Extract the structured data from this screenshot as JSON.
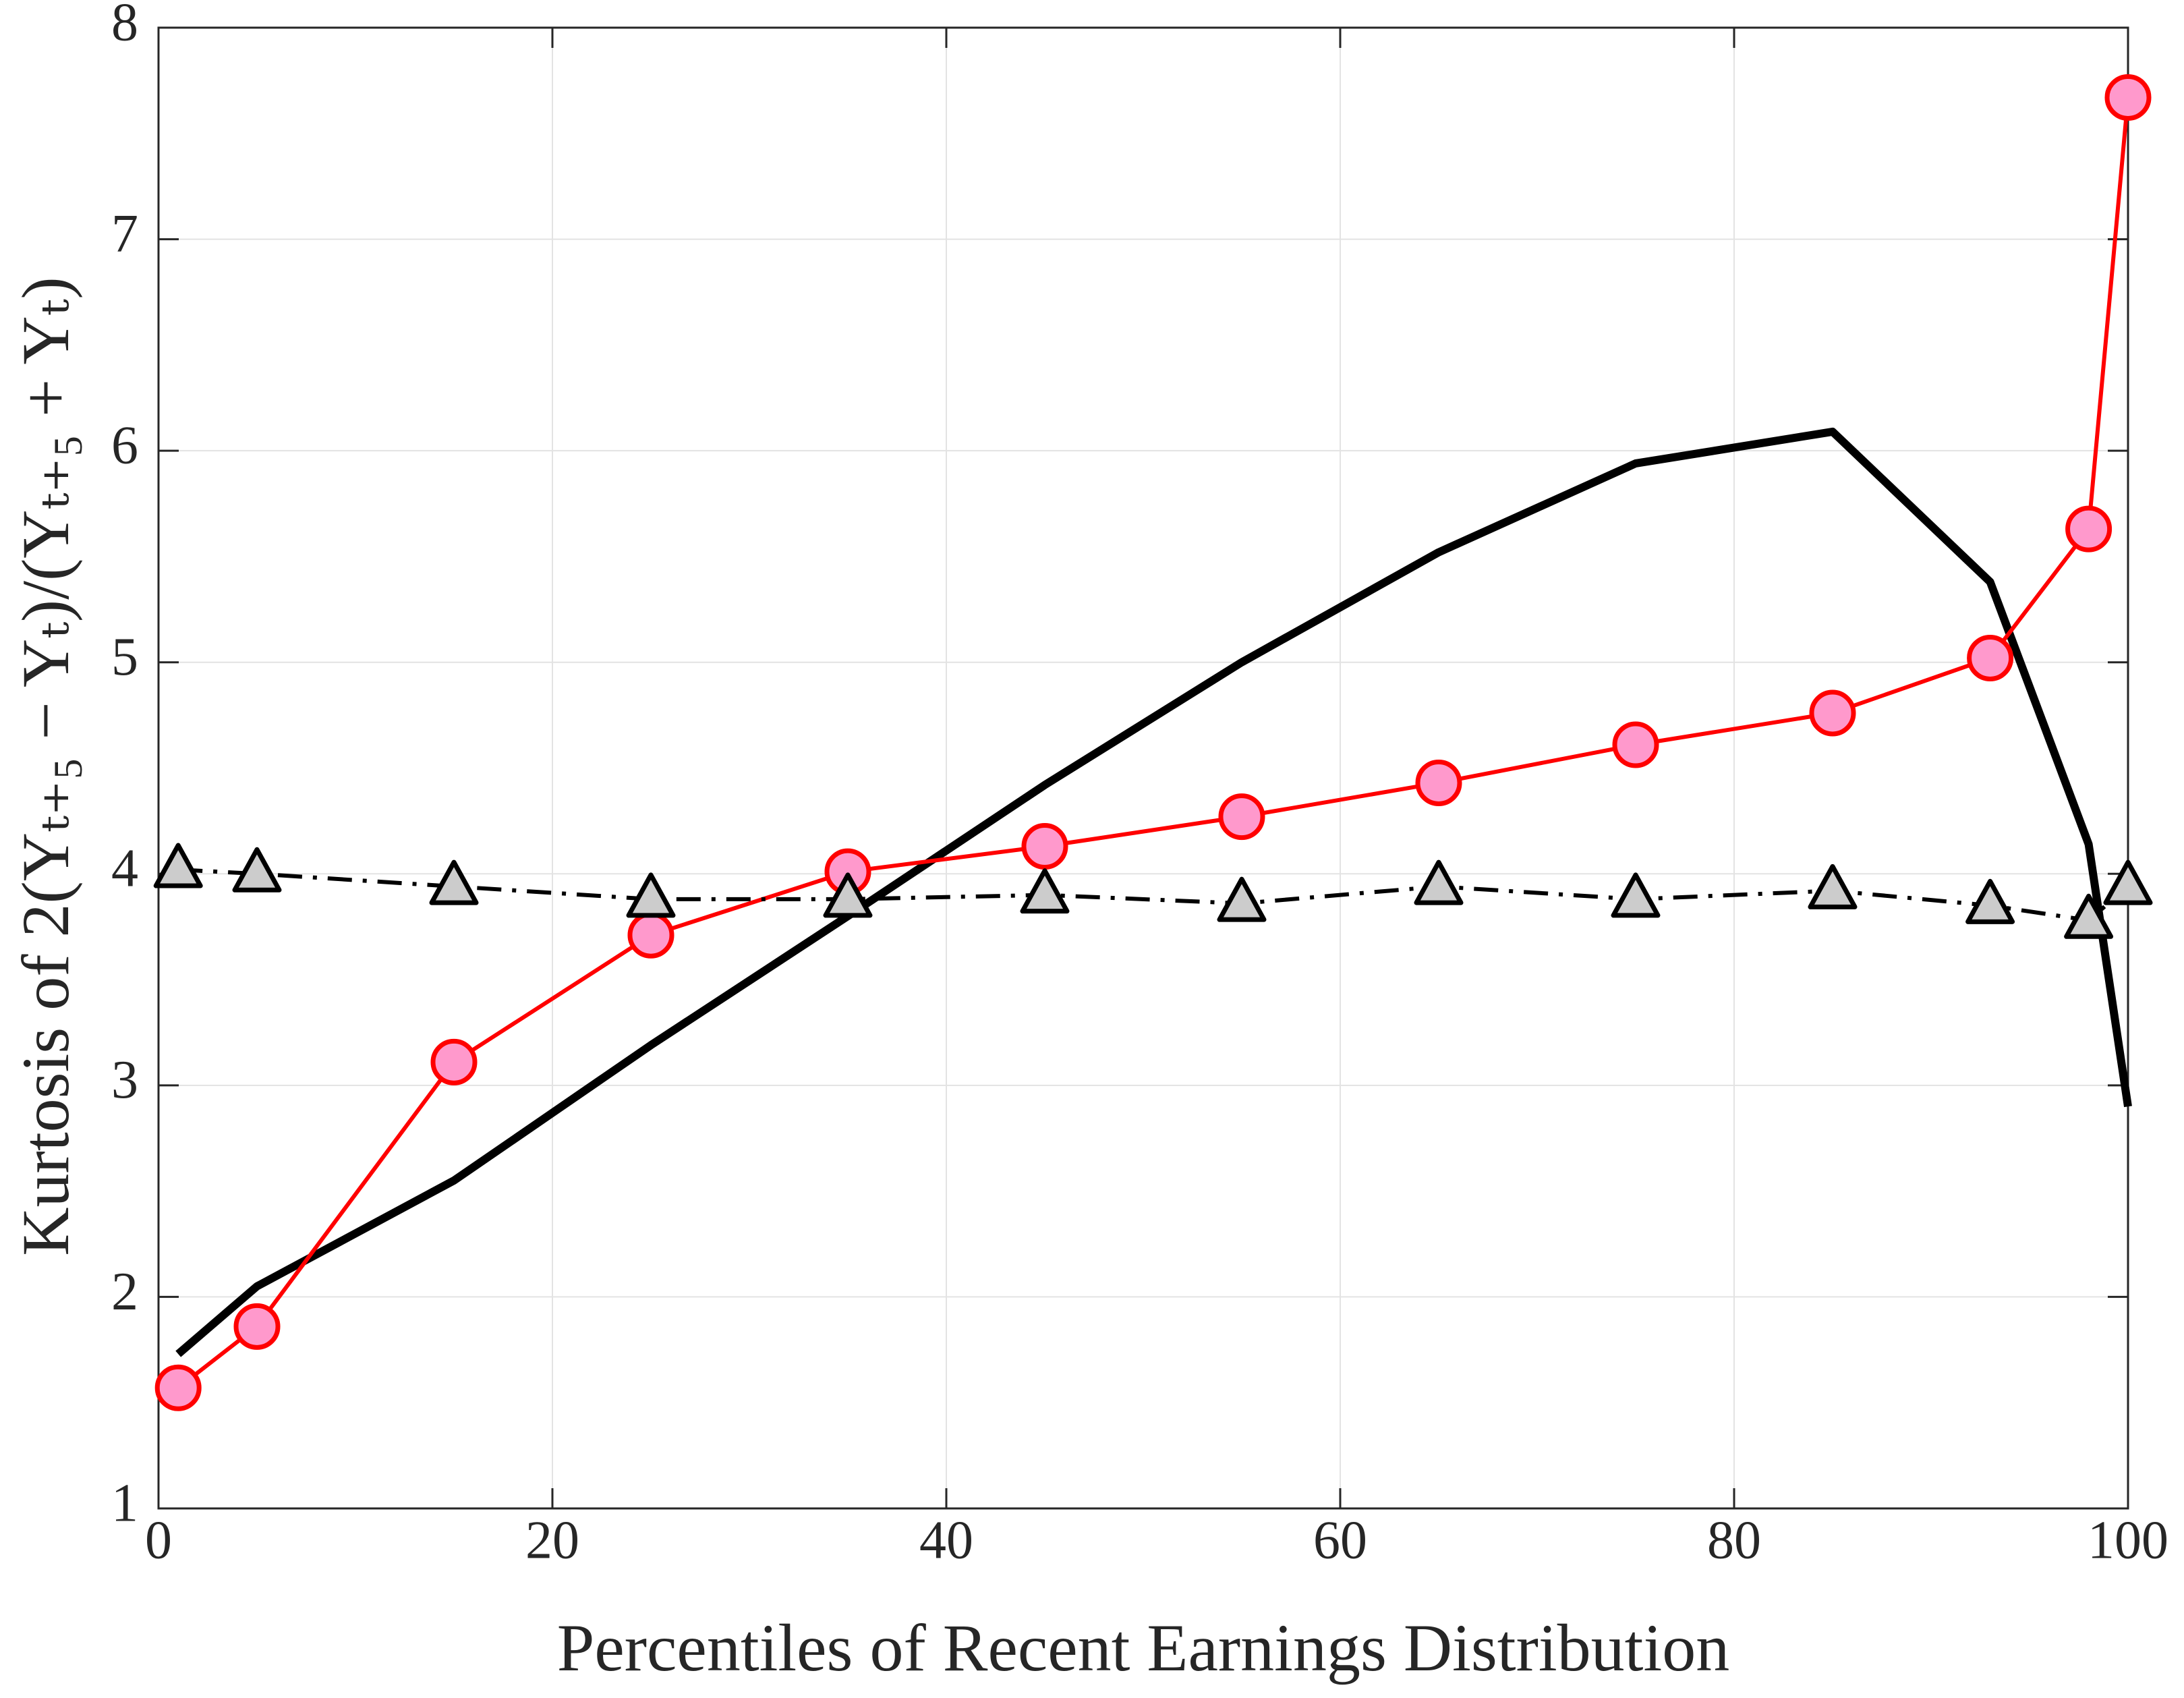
{
  "chart_data": {
    "type": "line",
    "x_label": "Percentiles of Recent Earnings Distribution",
    "y_label": "Kurtosis of 2(Yₜ₊₅ − Yₜ)/(Yₜ₊₅ + Yₜ)",
    "x": [
      1,
      5,
      15,
      25,
      35,
      45,
      55,
      65,
      75,
      85,
      93,
      98,
      100
    ],
    "series": [
      {
        "color": "#000000",
        "width": 12,
        "dash": "none",
        "marker": "none",
        "marker_fill": "none",
        "values": [
          1.73,
          2.05,
          2.55,
          3.19,
          3.8,
          4.42,
          5.0,
          5.52,
          5.94,
          6.09,
          5.38,
          4.14,
          2.9
        ]
      },
      {
        "color": "#ff0000",
        "width": 6,
        "dash": "none",
        "marker": "circle",
        "marker_fill": "#ff99cc",
        "values": [
          1.57,
          1.86,
          3.11,
          3.71,
          4.01,
          4.13,
          4.27,
          4.43,
          4.61,
          4.76,
          5.02,
          5.63,
          7.67
        ]
      },
      {
        "color": "#000000",
        "width": 6,
        "dash": "dashdot",
        "marker": "triangle",
        "marker_fill": "#cccccc",
        "values": [
          4.02,
          4.0,
          3.94,
          3.88,
          3.88,
          3.9,
          3.86,
          3.94,
          3.88,
          3.92,
          3.85,
          3.78,
          3.94
        ]
      }
    ],
    "xlim": [
      0,
      100
    ],
    "ylim": [
      1,
      8
    ],
    "xticks": [
      0,
      20,
      40,
      60,
      80,
      100
    ],
    "yticks": [
      1,
      2,
      3,
      4,
      5,
      6,
      7,
      8
    ],
    "grid": true
  }
}
